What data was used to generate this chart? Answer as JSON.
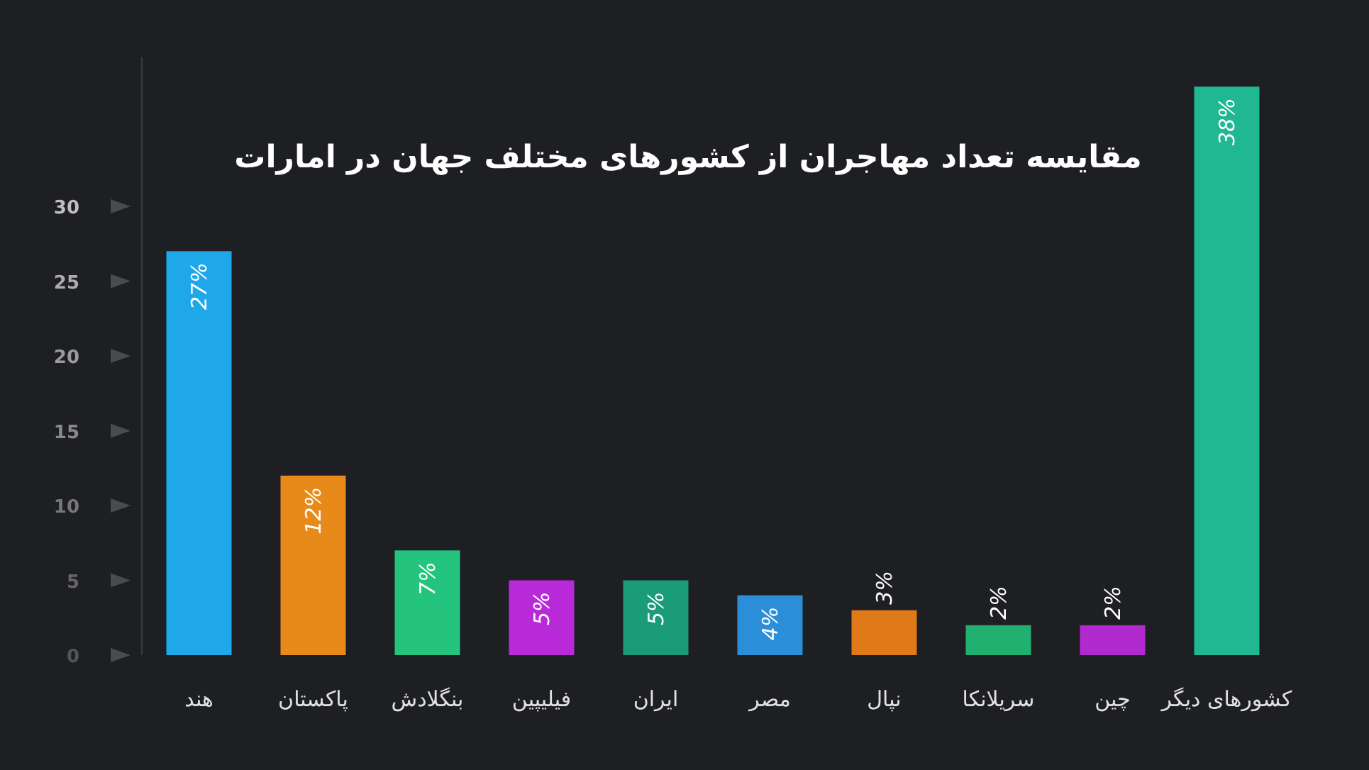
{
  "chart_data": {
    "type": "bar",
    "title": "مقایسه تعداد مهاجران از کشورهای مختلف جهان در امارات",
    "categories": [
      "هند",
      "پاکستان",
      "بنگلادش",
      "فیلیپین",
      "ایران",
      "مصر",
      "نپال",
      "سریلانکا",
      "چین",
      "کشورهای دیگر"
    ],
    "values": [
      27,
      12,
      7,
      5,
      5,
      4,
      3,
      2,
      2,
      38
    ],
    "colors": [
      "#1ea8ea",
      "#e88a1a",
      "#24c47e",
      "#b82ad8",
      "#1a9c78",
      "#2a8fd8",
      "#e07a18",
      "#22b070",
      "#b02ad0",
      "#1fb892"
    ],
    "value_labels": [
      "27%",
      "12%",
      "7%",
      "5%",
      "5%",
      "4%",
      "3%",
      "2%",
      "2%",
      "38%"
    ],
    "ylim": [
      0,
      40
    ],
    "yticks": [
      0,
      5,
      10,
      15,
      20,
      25,
      30
    ]
  }
}
